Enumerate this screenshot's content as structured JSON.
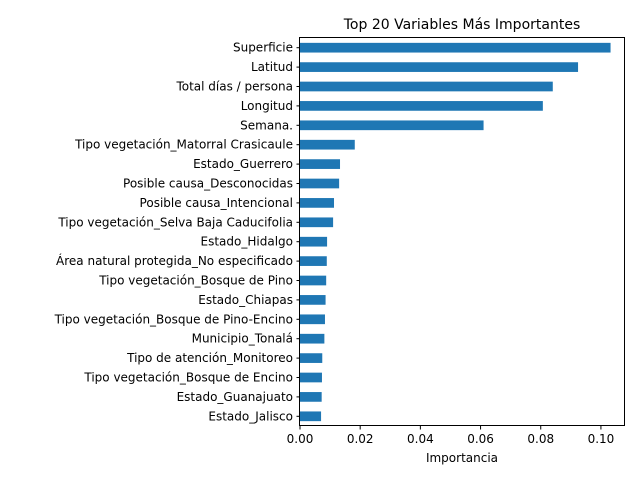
{
  "chart_data": {
    "type": "bar",
    "orientation": "horizontal",
    "title": "Top 20 Variables Más Importantes",
    "xlabel": "Importancia",
    "ylabel": "",
    "xlim": [
      0,
      0.108
    ],
    "xticks": [
      "0.00",
      "0.02",
      "0.04",
      "0.06",
      "0.08",
      "0.10"
    ],
    "xtick_values": [
      0,
      0.02,
      0.04,
      0.06,
      0.08,
      0.1
    ],
    "grid": false,
    "legend": "none",
    "bar_color": "#1f77b4",
    "categories": [
      "Superficie",
      "Latitud",
      "Total días / persona",
      "Longitud",
      "Semana.",
      "Tipo vegetación_Matorral Crasicaule",
      "Estado_Guerrero",
      "Posible causa_Desconocidas",
      "Posible causa_Intencional",
      "Tipo vegetación_Selva Baja Caducifolia",
      "Estado_Hidalgo",
      "Área natural protegida_No especificado",
      "Tipo vegetación_Bosque de Pino",
      "Estado_Chiapas",
      "Tipo vegetación_Bosque de Pino-Encino",
      "Municipio_Tonalá",
      "Tipo de atención_Monitoreo",
      "Tipo vegetación_Bosque de Encino",
      "Estado_Guanajuato",
      "Estado_Jalisco"
    ],
    "values": [
      0.1032,
      0.0924,
      0.084,
      0.0807,
      0.061,
      0.0182,
      0.0133,
      0.013,
      0.0113,
      0.011,
      0.009,
      0.0089,
      0.0087,
      0.0085,
      0.0083,
      0.0081,
      0.0074,
      0.0073,
      0.0072,
      0.007
    ]
  }
}
